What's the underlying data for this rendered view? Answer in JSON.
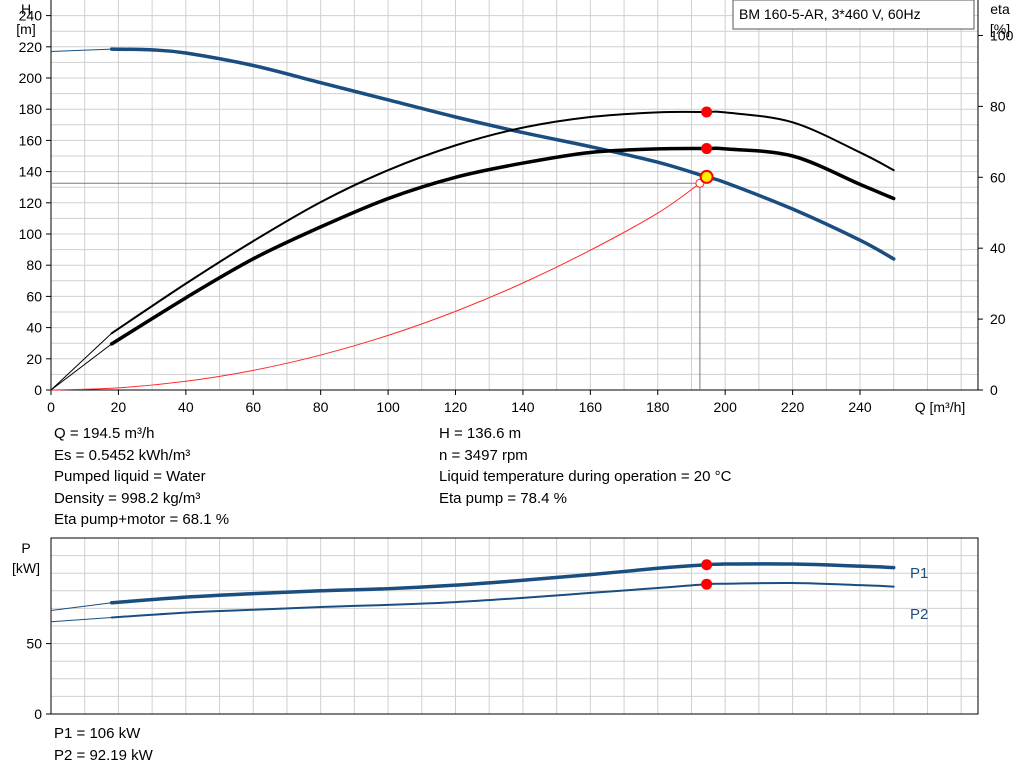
{
  "pump_label": "BM 160-5-AR, 3*460 V, 60Hz",
  "chart_data": [
    {
      "type": "line",
      "title": "BM 160-5-AR, 3*460 V, 60Hz",
      "xlabel": "Q [m³/h]",
      "ylabel_lines": [
        "H",
        "[m]"
      ],
      "y2label_lines": [
        "eta",
        "[%]"
      ],
      "xlim": [
        0,
        275
      ],
      "ylim": [
        0,
        250
      ],
      "y2lim": [
        0,
        110
      ],
      "x_ticks": [
        0,
        20,
        40,
        60,
        80,
        100,
        120,
        140,
        160,
        180,
        200,
        220,
        240
      ],
      "y_ticks": [
        0,
        20,
        40,
        60,
        80,
        100,
        120,
        140,
        160,
        180,
        200,
        220,
        240
      ],
      "y2_ticks": [
        0,
        20,
        40,
        60,
        80,
        100
      ],
      "grid": true,
      "series": [
        {
          "id": "head",
          "axis": "left",
          "color": "#1a4e80",
          "thin_points": [
            [
              0,
              217
            ],
            [
              18,
              218.5
            ]
          ],
          "points": [
            [
              18,
              218.5
            ],
            [
              30,
              218
            ],
            [
              40,
              216
            ],
            [
              60,
              208
            ],
            [
              80,
              197
            ],
            [
              100,
              186
            ],
            [
              120,
              175
            ],
            [
              140,
              165
            ],
            [
              160,
              156
            ],
            [
              180,
              146
            ],
            [
              194.5,
              136.6
            ],
            [
              200,
              133
            ],
            [
              220,
              116
            ],
            [
              240,
              96
            ],
            [
              250,
              84
            ]
          ]
        },
        {
          "id": "eta-pump",
          "axis": "right",
          "color": "#000000",
          "thin_points": [
            [
              0,
              0
            ],
            [
              18,
              16
            ]
          ],
          "points": [
            [
              18,
              16
            ],
            [
              40,
              30
            ],
            [
              60,
              42
            ],
            [
              80,
              53
            ],
            [
              100,
              62
            ],
            [
              120,
              69
            ],
            [
              140,
              74
            ],
            [
              160,
              77
            ],
            [
              180,
              78.3
            ],
            [
              194.5,
              78.4
            ],
            [
              200,
              78.3
            ],
            [
              220,
              75.5
            ],
            [
              240,
              67
            ],
            [
              250,
              62
            ]
          ]
        },
        {
          "id": "eta-pump-motor",
          "axis": "right",
          "color": "#000000",
          "thin_points": [
            [
              0,
              0
            ],
            [
              18,
              13
            ]
          ],
          "points": [
            [
              18,
              13
            ],
            [
              40,
              26
            ],
            [
              60,
              37
            ],
            [
              80,
              46
            ],
            [
              100,
              54
            ],
            [
              120,
              60
            ],
            [
              140,
              64
            ],
            [
              160,
              67
            ],
            [
              180,
              68
            ],
            [
              194.5,
              68.1
            ],
            [
              200,
              68
            ],
            [
              220,
              66
            ],
            [
              240,
              58
            ],
            [
              250,
              54
            ]
          ]
        }
      ],
      "system_curve": {
        "color": "#ff2a2a",
        "points": [
          [
            0,
            0
          ],
          [
            20,
            1.4
          ],
          [
            40,
            5.6
          ],
          [
            60,
            12.6
          ],
          [
            80,
            22.4
          ],
          [
            100,
            35
          ],
          [
            120,
            50.4
          ],
          [
            140,
            68.6
          ],
          [
            160,
            89.6
          ],
          [
            180,
            113.4
          ],
          [
            192.5,
            132.5
          ]
        ]
      },
      "duty_point": {
        "Q": 194.5,
        "H": 136.6,
        "eta_pump": 78.4,
        "eta_pump_motor": 68.1,
        "Q_ref": 192.5,
        "H_ref": 132.5
      }
    },
    {
      "type": "line",
      "ylabel_lines": [
        "P",
        "[kW]"
      ],
      "xlim": [
        0,
        275
      ],
      "ylim": [
        0,
        125
      ],
      "y_ticks": [
        0,
        50
      ],
      "grid": true,
      "series": [
        {
          "id": "p1",
          "name": "P1",
          "color": "#1a4e80",
          "thin_points": [
            [
              0,
              73.5
            ],
            [
              18,
              79
            ]
          ],
          "points": [
            [
              18,
              79
            ],
            [
              40,
              83
            ],
            [
              60,
              85.5
            ],
            [
              80,
              87.5
            ],
            [
              100,
              89
            ],
            [
              120,
              91.5
            ],
            [
              140,
              95
            ],
            [
              160,
              99
            ],
            [
              180,
              103.5
            ],
            [
              194.5,
              106
            ],
            [
              200,
              106.5
            ],
            [
              220,
              106.5
            ],
            [
              240,
              105
            ],
            [
              250,
              104
            ]
          ]
        },
        {
          "id": "p2",
          "name": "P2",
          "color": "#1a4e80",
          "thin_points": [
            [
              0,
              65.5
            ],
            [
              18,
              68.5
            ]
          ],
          "points": [
            [
              18,
              68.5
            ],
            [
              40,
              72
            ],
            [
              60,
              74
            ],
            [
              80,
              76
            ],
            [
              100,
              77.5
            ],
            [
              120,
              79.5
            ],
            [
              140,
              82.5
            ],
            [
              160,
              86
            ],
            [
              180,
              89.5
            ],
            [
              194.5,
              92.19
            ],
            [
              200,
              92.5
            ],
            [
              220,
              93
            ],
            [
              240,
              91.5
            ],
            [
              250,
              90.5
            ]
          ]
        }
      ],
      "duty_point": {
        "Q": 194.5,
        "P1": 106,
        "P2": 92.19
      }
    }
  ],
  "info_left": [
    "Q = 194.5 m³/h",
    "Es = 0.5452 kWh/m³",
    "Pumped liquid = Water",
    "Density = 998.2 kg/m³",
    "Eta pump+motor = 68.1 %"
  ],
  "info_right": [
    "H = 136.6 m",
    "n = 3497 rpm",
    "Liquid temperature during operation = 20 °C",
    "Eta pump = 78.4 %"
  ],
  "info_power": [
    "P1 = 106 kW",
    "P2 = 92.19 kW"
  ]
}
